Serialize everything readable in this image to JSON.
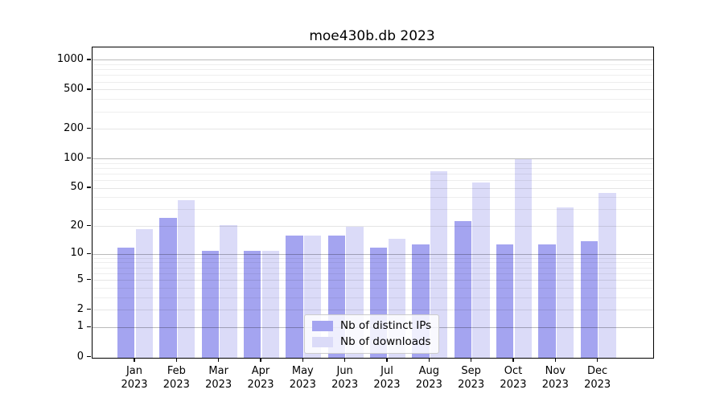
{
  "title": "moe430b.db 2023",
  "chart_data": {
    "type": "bar",
    "categories": [
      "Jan",
      "Feb",
      "Mar",
      "Apr",
      "May",
      "Jun",
      "Jul",
      "Aug",
      "Sep",
      "Oct",
      "Nov",
      "Dec"
    ],
    "x_tick_year": "2023",
    "series": [
      {
        "name": "Nb of distinct IPs",
        "color": "#a4a4f0",
        "values": [
          12,
          25,
          11,
          11,
          16,
          16,
          12,
          13,
          23,
          13,
          13,
          14
        ]
      },
      {
        "name": "Nb of downloads",
        "color": "#dbdbf8",
        "values": [
          19,
          38,
          21,
          11,
          16,
          20,
          15,
          75,
          58,
          100,
          32,
          45
        ]
      }
    ],
    "y_ticks": [
      0,
      1,
      2,
      5,
      10,
      20,
      50,
      100,
      200,
      500,
      1000
    ],
    "y_minor_ticks": [
      3,
      4,
      6,
      7,
      8,
      9,
      30,
      40,
      60,
      70,
      80,
      90,
      300,
      400,
      600,
      700,
      800,
      900
    ],
    "y_scale": "log10(1+v)",
    "ylim": [
      0,
      1345
    ],
    "grid": true,
    "legend_position": "lower-center"
  }
}
